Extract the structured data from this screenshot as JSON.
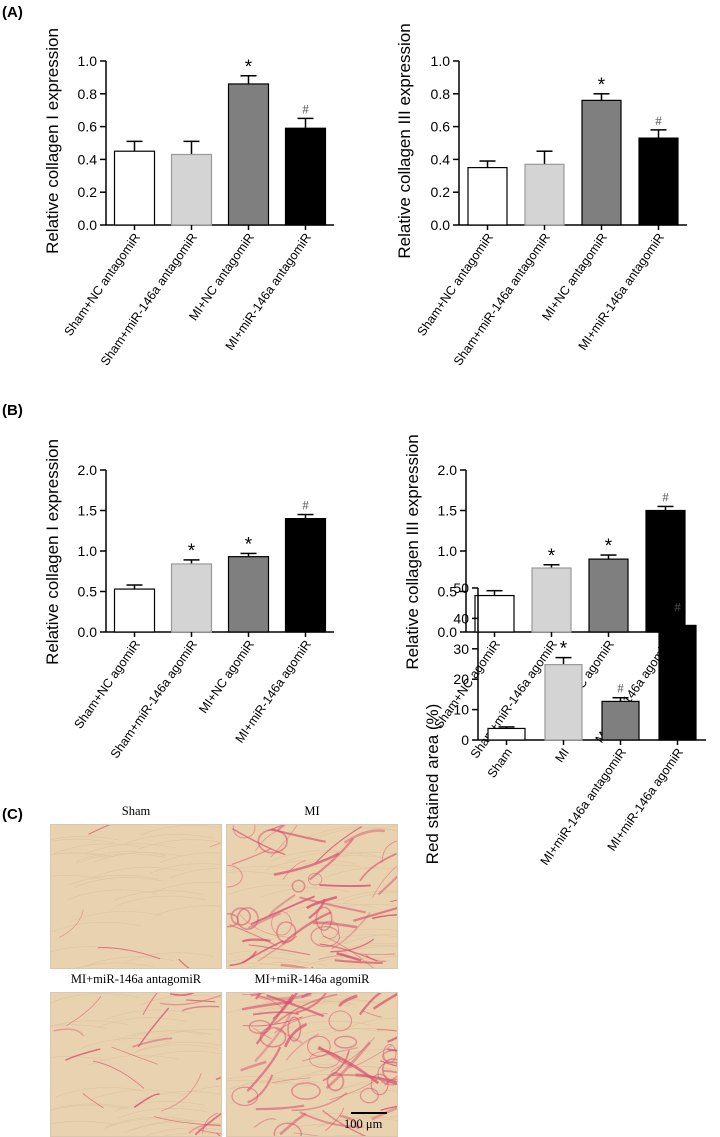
{
  "panels": {
    "a": "(A)",
    "b": "(B)",
    "c": "(C)"
  },
  "colors": {
    "bar1": "#ffffff",
    "bar2": "#d4d4d4",
    "bar3": "#7f7f7f",
    "bar4": "#000000",
    "tissue": "#e9d2b0",
    "stain": "#d9546f"
  },
  "chart_data": [
    {
      "id": "a1",
      "type": "bar",
      "ylabel": "Relative collagen I expression",
      "categories": [
        "Sham+NC antagomiR",
        "Sham+miR-146a antagomiR",
        "MI+NC antagomiR",
        "MI+miR-146a antagomiR"
      ],
      "values": [
        0.45,
        0.43,
        0.86,
        0.59
      ],
      "errors": [
        0.06,
        0.08,
        0.05,
        0.06
      ],
      "annotations": [
        "",
        "",
        "*",
        "#"
      ],
      "ylim": [
        0,
        1.0
      ],
      "yticks": [
        "0.0",
        "0.2",
        "0.4",
        "0.6",
        "0.8",
        "1.0"
      ],
      "grid": false
    },
    {
      "id": "a2",
      "type": "bar",
      "ylabel": "Relative collagen III expression",
      "categories": [
        "Sham+NC antagomiR",
        "Sham+miR-146a antagomiR",
        "MI+NC antagomiR",
        "MI+miR-146a antagomiR"
      ],
      "values": [
        0.35,
        0.37,
        0.76,
        0.53
      ],
      "errors": [
        0.04,
        0.08,
        0.04,
        0.05
      ],
      "annotations": [
        "",
        "",
        "*",
        "#"
      ],
      "ylim": [
        0,
        1.0
      ],
      "yticks": [
        "0.0",
        "0.2",
        "0.4",
        "0.6",
        "0.8",
        "1.0"
      ],
      "grid": false
    },
    {
      "id": "b1",
      "type": "bar",
      "ylabel": "Relative collagen I expression",
      "categories": [
        "Sham+NC agomiR",
        "Sham+miR-146a agomiR",
        "MI+NC agomiR",
        "MI+miR-146a agomiR"
      ],
      "values": [
        0.53,
        0.84,
        0.93,
        1.4
      ],
      "errors": [
        0.05,
        0.05,
        0.04,
        0.05
      ],
      "annotations": [
        "",
        "*",
        "*",
        "#"
      ],
      "ylim": [
        0,
        2.0
      ],
      "yticks": [
        "0.0",
        "0.5",
        "1.0",
        "1.5",
        "2.0"
      ],
      "grid": false
    },
    {
      "id": "b2",
      "type": "bar",
      "ylabel": "Relative collagen III expression",
      "categories": [
        "Sham+NC agomiR",
        "Sham+miR-146a agomiR",
        "MI+NC agomiR",
        "MI+miR-146a agomiR"
      ],
      "values": [
        0.45,
        0.79,
        0.9,
        1.5
      ],
      "errors": [
        0.06,
        0.04,
        0.05,
        0.05
      ],
      "annotations": [
        "",
        "*",
        "*",
        "#"
      ],
      "ylim": [
        0,
        2.0
      ],
      "yticks": [
        "0.0",
        "0.5",
        "1.0",
        "1.5",
        "2.0"
      ],
      "grid": false
    },
    {
      "id": "c",
      "type": "bar",
      "ylabel": "Red stained area (%)",
      "categories": [
        "Sham",
        "MI",
        "MI+miR-146a antagomiR",
        "MI+miR-146a agomiR"
      ],
      "values": [
        3.8,
        24.8,
        12.7,
        37.7
      ],
      "errors": [
        0.5,
        2.3,
        1.2,
        3.0
      ],
      "annotations": [
        "",
        "*",
        "#",
        "#"
      ],
      "ylim": [
        0,
        50
      ],
      "yticks": [
        "0",
        "10",
        "20",
        "30",
        "40",
        "50"
      ],
      "grid": false
    }
  ],
  "micrographs": [
    {
      "title": "Sham",
      "level": 0.02
    },
    {
      "title": "MI",
      "level": 0.6
    },
    {
      "title": "MI+miR-146a  antagomiR",
      "level": 0.25
    },
    {
      "title": "MI+miR-146a  agomiR",
      "level": 0.75
    }
  ],
  "scale_bar": "100 μm"
}
